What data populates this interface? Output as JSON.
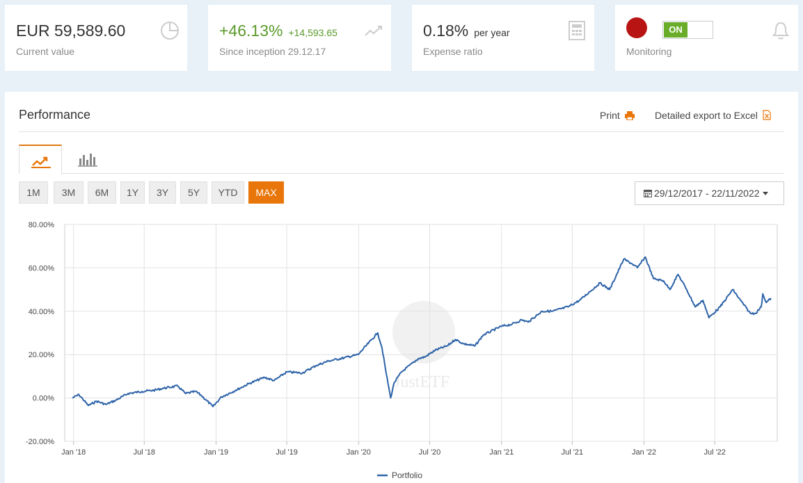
{
  "cards": {
    "current_value": {
      "value": "EUR 59,589.60",
      "label": "Current value",
      "icon": "pie-chart-icon"
    },
    "performance": {
      "value": "+46.13%",
      "abs": "+14,593.65",
      "label": "Since inception 29.12.17",
      "icon": "trend-line-icon"
    },
    "expense": {
      "value": "0.18%",
      "unit": "per year",
      "label": "Expense ratio",
      "icon": "calculator-icon"
    },
    "monitoring": {
      "toggle": "ON",
      "label": "Monitoring",
      "icon": "bell-icon",
      "status_color": "#b81414"
    }
  },
  "panel": {
    "title": "Performance",
    "print_label": "Print",
    "excel_label": "Detailed export to Excel",
    "tabs": [
      "line-chart-icon",
      "bar-chart-icon"
    ],
    "ranges": [
      "1M",
      "3M",
      "6M",
      "1Y",
      "3Y",
      "5Y",
      "YTD",
      "MAX"
    ],
    "active_range": "MAX",
    "date_range": "29/12/2017 - 22/11/2022",
    "accent_color": "#e8760a"
  },
  "chart_data": {
    "type": "line",
    "x_tick_labels": [
      "Jan '18",
      "Jul '18",
      "Jan '19",
      "Jul '19",
      "Jan '20",
      "Jul '20",
      "Jan '21",
      "Jul '21",
      "Jan '22",
      "Jul '22"
    ],
    "y_tick_labels": [
      "80.00%",
      "60.00%",
      "40.00%",
      "20.00%",
      "0.00%",
      "-20.00%"
    ],
    "ylim": [
      -20,
      80
    ],
    "xlim": [
      "2017-12-29",
      "2022-11-22"
    ],
    "series": [
      {
        "name": "Portfolio",
        "color": "#2d63a8",
        "points": [
          [
            "2017-12-29",
            0
          ],
          [
            "2018-01-15",
            1.5
          ],
          [
            "2018-02-08",
            -3.5
          ],
          [
            "2018-03-01",
            -1.5
          ],
          [
            "2018-03-25",
            -3
          ],
          [
            "2018-04-20",
            -1
          ],
          [
            "2018-05-20",
            2
          ],
          [
            "2018-06-25",
            3
          ],
          [
            "2018-07-25",
            3.5
          ],
          [
            "2018-08-20",
            4.5
          ],
          [
            "2018-09-25",
            5.5
          ],
          [
            "2018-10-15",
            2
          ],
          [
            "2018-11-10",
            3
          ],
          [
            "2018-11-25",
            1
          ],
          [
            "2018-12-24",
            -4
          ],
          [
            "2019-01-15",
            0.5
          ],
          [
            "2019-02-20",
            3.5
          ],
          [
            "2019-03-25",
            6.5
          ],
          [
            "2019-05-05",
            9.5
          ],
          [
            "2019-05-30",
            8
          ],
          [
            "2019-07-01",
            12
          ],
          [
            "2019-08-10",
            11.5
          ],
          [
            "2019-09-15",
            15
          ],
          [
            "2019-10-15",
            17
          ],
          [
            "2019-11-25",
            18.5
          ],
          [
            "2019-12-31",
            20
          ],
          [
            "2020-02-19",
            30
          ],
          [
            "2020-03-01",
            23
          ],
          [
            "2020-03-12",
            11
          ],
          [
            "2020-03-23",
            0
          ],
          [
            "2020-04-01",
            7
          ],
          [
            "2020-04-20",
            12
          ],
          [
            "2020-06-01",
            18
          ],
          [
            "2020-06-20",
            19
          ],
          [
            "2020-07-15",
            22
          ],
          [
            "2020-08-15",
            24
          ],
          [
            "2020-09-05",
            27
          ],
          [
            "2020-09-25",
            25
          ],
          [
            "2020-10-25",
            24
          ],
          [
            "2020-11-15",
            29
          ],
          [
            "2020-12-31",
            33
          ],
          [
            "2021-01-28",
            34
          ],
          [
            "2021-02-22",
            36
          ],
          [
            "2021-03-10",
            35
          ],
          [
            "2021-04-15",
            40
          ],
          [
            "2021-05-12",
            40
          ],
          [
            "2021-06-20",
            42
          ],
          [
            "2021-07-20",
            45
          ],
          [
            "2021-08-15",
            49
          ],
          [
            "2021-09-10",
            53
          ],
          [
            "2021-10-05",
            50
          ],
          [
            "2021-11-10",
            64
          ],
          [
            "2021-11-30",
            62
          ],
          [
            "2021-12-15",
            60
          ],
          [
            "2022-01-04",
            65
          ],
          [
            "2022-01-25",
            55
          ],
          [
            "2022-02-20",
            54
          ],
          [
            "2022-03-08",
            50
          ],
          [
            "2022-03-29",
            57
          ],
          [
            "2022-04-20",
            50
          ],
          [
            "2022-05-12",
            42
          ],
          [
            "2022-06-01",
            45
          ],
          [
            "2022-06-16",
            37
          ],
          [
            "2022-07-15",
            42
          ],
          [
            "2022-08-16",
            50
          ],
          [
            "2022-09-05",
            45
          ],
          [
            "2022-09-30",
            39
          ],
          [
            "2022-10-13",
            39
          ],
          [
            "2022-10-28",
            42
          ],
          [
            "2022-11-01",
            48
          ],
          [
            "2022-11-10",
            44
          ],
          [
            "2022-11-22",
            46
          ]
        ]
      }
    ],
    "grid": true,
    "legend": "bottom-center",
    "watermark": "JustETF"
  }
}
